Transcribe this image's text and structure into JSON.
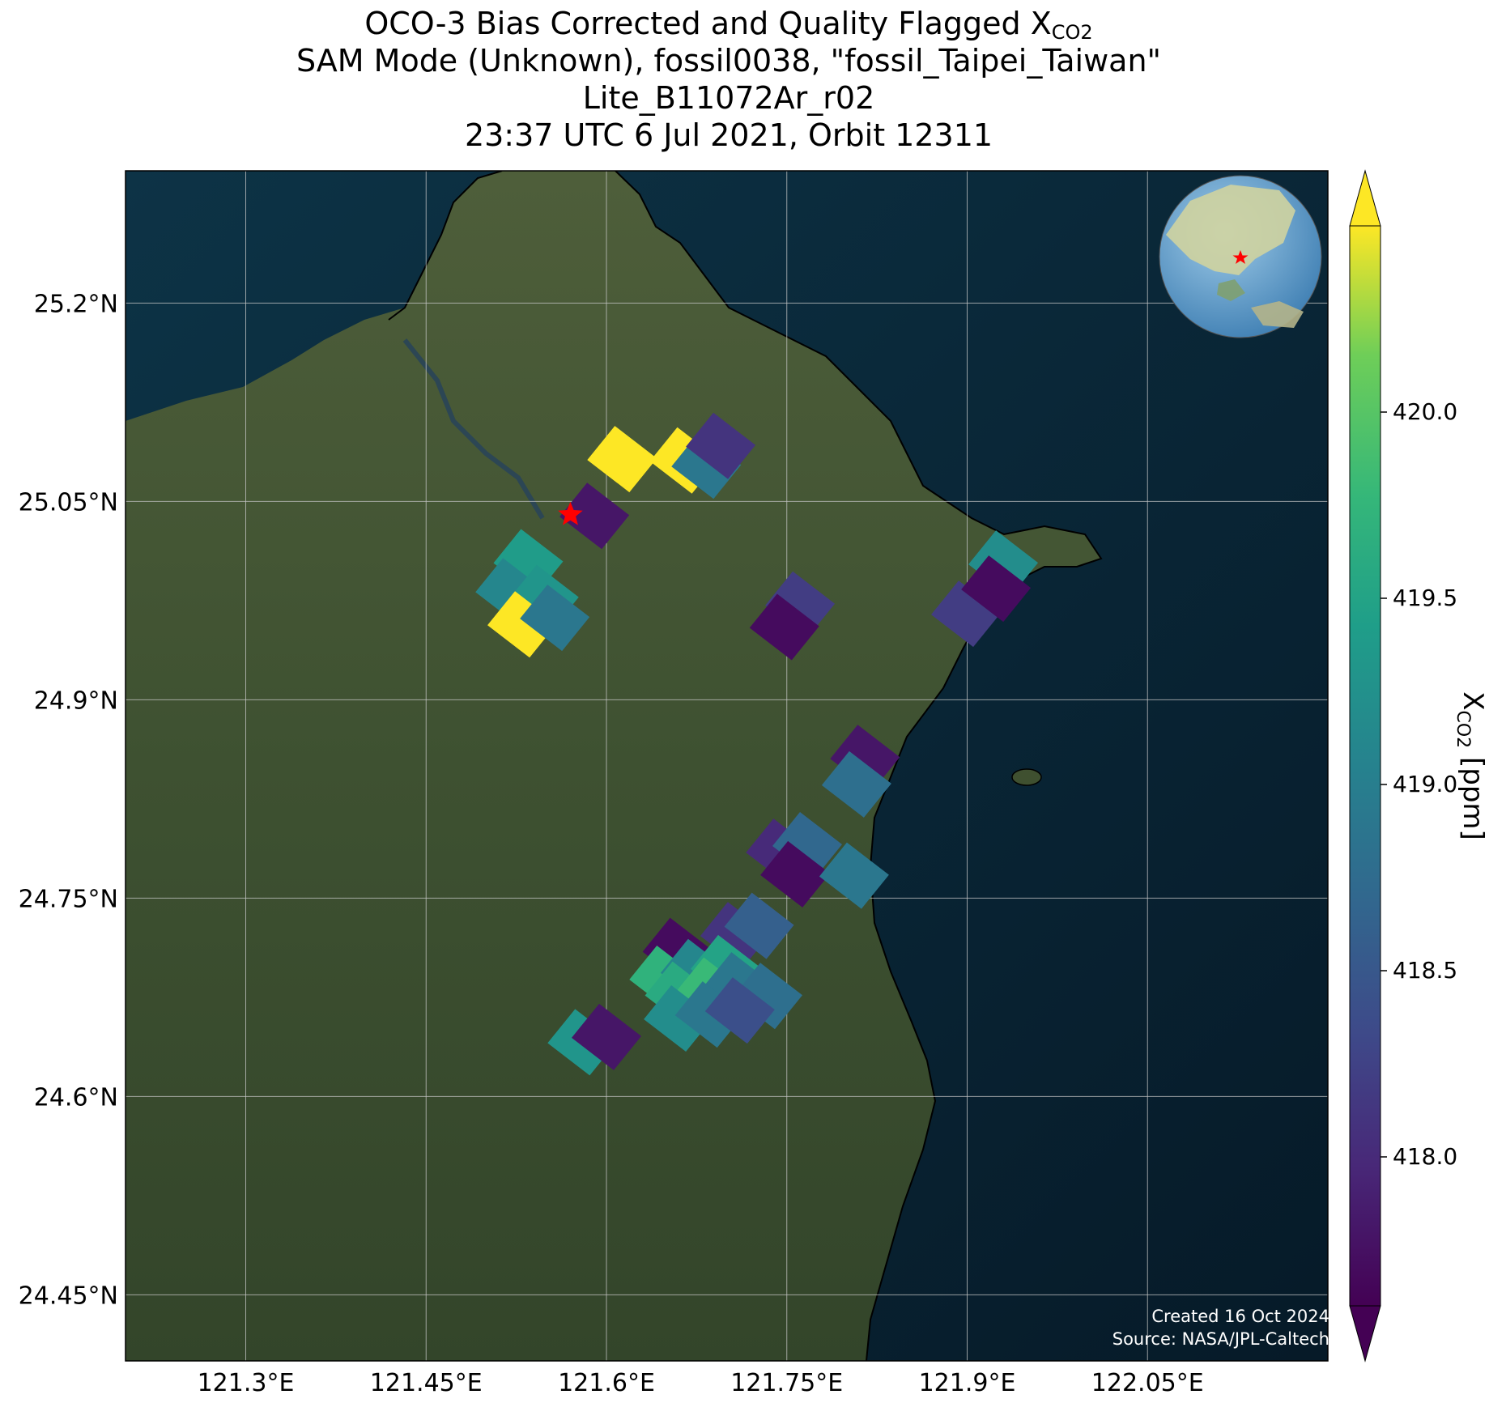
{
  "title": {
    "line1_prefix": "OCO-3 Bias Corrected and Quality Flagged X",
    "line1_sub": "CO2",
    "line2": "SAM Mode (Unknown), fossil0038, \"fossil_Taipei_Taiwan\"",
    "line3": "Lite_B11072Ar_r02",
    "line4": "23:37 UTC 6 Jul 2021, Orbit 12311"
  },
  "colors": {
    "ocean": "#0b2a3a",
    "land": "#3f5030",
    "coastline": "#000000",
    "gridline": "#c8c8c8",
    "star": "#ff0000",
    "viridis_low": "#440154",
    "viridis_mid": "#21918c",
    "viridis_high": "#fde725"
  },
  "credits": {
    "created": "Created 16 Oct 2024",
    "source": "Source: NASA/JPL-Caltech"
  },
  "inset_globe": {
    "icon": "globe-icon",
    "marker": "red star over Taiwan"
  },
  "target_marker": {
    "icon": "star-icon",
    "lon": 121.57,
    "lat": 25.04
  },
  "chart_data": {
    "type": "heatmap",
    "projection": "lat/lon",
    "xlim": [
      121.2,
      122.2
    ],
    "ylim": [
      24.4,
      25.3
    ],
    "x_ticks": [
      121.3,
      121.45,
      121.6,
      121.75,
      121.9,
      122.05
    ],
    "x_tick_labels": [
      "121.3°E",
      "121.45°E",
      "121.6°E",
      "121.75°E",
      "121.9°E",
      "122.05°E"
    ],
    "y_ticks": [
      24.45,
      24.6,
      24.75,
      24.9,
      25.05,
      25.2
    ],
    "y_tick_labels": [
      "24.45°N",
      "24.6°N",
      "24.75°N",
      "24.9°N",
      "25.05°N",
      "25.2°N"
    ],
    "grid": true,
    "colorbar": {
      "label_prefix": "X",
      "label_sub": "CO2",
      "label_suffix": " [ppm]",
      "vmin": 417.6,
      "vmax": 420.5,
      "ticks": [
        418.0,
        418.5,
        419.0,
        419.5,
        420.0
      ],
      "tick_labels": [
        "418.0",
        "418.5",
        "419.0",
        "419.5",
        "420.0"
      ],
      "extend": "both",
      "cmap": "viridis"
    },
    "soundings": [
      {
        "lon": 121.613,
        "lat": 25.082,
        "xco2": 420.5
      },
      {
        "lon": 121.665,
        "lat": 25.081,
        "xco2": 420.5
      },
      {
        "lon": 121.683,
        "lat": 25.077,
        "xco2": 418.9
      },
      {
        "lon": 121.695,
        "lat": 25.092,
        "xco2": 418.1
      },
      {
        "lon": 121.59,
        "lat": 25.039,
        "xco2": 417.8
      },
      {
        "lon": 121.535,
        "lat": 25.004,
        "xco2": 419.4
      },
      {
        "lon": 121.52,
        "lat": 24.982,
        "xco2": 419.1
      },
      {
        "lon": 121.548,
        "lat": 24.977,
        "xco2": 419.3
      },
      {
        "lon": 121.53,
        "lat": 24.957,
        "xco2": 420.5
      },
      {
        "lon": 121.557,
        "lat": 24.962,
        "xco2": 418.9
      },
      {
        "lon": 121.761,
        "lat": 24.972,
        "xco2": 418.2
      },
      {
        "lon": 121.748,
        "lat": 24.955,
        "xco2": 417.7
      },
      {
        "lon": 121.899,
        "lat": 24.965,
        "xco2": 418.2
      },
      {
        "lon": 121.93,
        "lat": 25.003,
        "xco2": 419.2
      },
      {
        "lon": 121.924,
        "lat": 24.984,
        "xco2": 417.7
      },
      {
        "lon": 121.815,
        "lat": 24.856,
        "xco2": 417.8
      },
      {
        "lon": 121.808,
        "lat": 24.836,
        "xco2": 418.8
      },
      {
        "lon": 121.745,
        "lat": 24.785,
        "xco2": 418.0
      },
      {
        "lon": 121.767,
        "lat": 24.79,
        "xco2": 418.7
      },
      {
        "lon": 121.757,
        "lat": 24.768,
        "xco2": 417.7
      },
      {
        "lon": 121.806,
        "lat": 24.767,
        "xco2": 418.9
      },
      {
        "lon": 121.707,
        "lat": 24.722,
        "xco2": 418.1
      },
      {
        "lon": 121.727,
        "lat": 24.729,
        "xco2": 418.6
      },
      {
        "lon": 121.659,
        "lat": 24.71,
        "xco2": 417.7
      },
      {
        "lon": 121.648,
        "lat": 24.689,
        "xco2": 419.7
      },
      {
        "lon": 121.674,
        "lat": 24.694,
        "xco2": 419.1
      },
      {
        "lon": 121.699,
        "lat": 24.697,
        "xco2": 419.5
      },
      {
        "lon": 121.661,
        "lat": 24.677,
        "xco2": 419.6
      },
      {
        "lon": 121.687,
        "lat": 24.68,
        "xco2": 419.8
      },
      {
        "lon": 121.71,
        "lat": 24.684,
        "xco2": 418.9
      },
      {
        "lon": 121.734,
        "lat": 24.676,
        "xco2": 418.8
      },
      {
        "lon": 121.66,
        "lat": 24.659,
        "xco2": 419.2
      },
      {
        "lon": 121.686,
        "lat": 24.662,
        "xco2": 418.9
      },
      {
        "lon": 121.711,
        "lat": 24.665,
        "xco2": 418.4
      },
      {
        "lon": 121.58,
        "lat": 24.641,
        "xco2": 419.3
      },
      {
        "lon": 121.6,
        "lat": 24.645,
        "xco2": 417.8
      }
    ]
  }
}
